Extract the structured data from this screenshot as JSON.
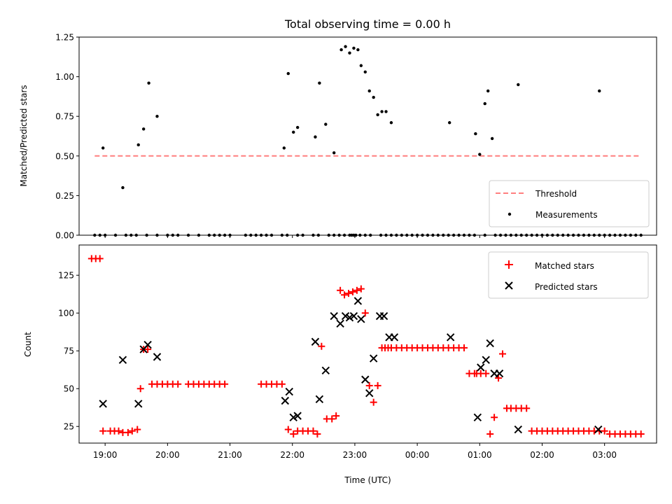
{
  "chart_data": [
    {
      "type": "scatter",
      "title": "Total observing time = 0.00 h",
      "xlabel": "",
      "ylabel": "Matched/Predicted stars",
      "xlim": [
        "18:35",
        "03:50"
      ],
      "ylim": [
        0.0,
        1.25
      ],
      "yticks": [
        "0.00",
        "0.25",
        "0.50",
        "0.75",
        "1.00",
        "1.25"
      ],
      "legend_position": "lower right",
      "series": [
        {
          "name": "Threshold",
          "kind": "dashed-line",
          "color": "#ff7f7f",
          "x": [
            "18:50",
            "03:35"
          ],
          "y": [
            0.5,
            0.5
          ]
        },
        {
          "name": "Measurements",
          "kind": "dots",
          "color": "#000000",
          "x": [
            "18:50",
            "18:55",
            "19:00",
            "19:10",
            "19:20",
            "19:25",
            "19:30",
            "19:40",
            "19:50",
            "20:00",
            "20:05",
            "20:10",
            "20:20",
            "20:30",
            "20:40",
            "20:45",
            "20:50",
            "20:55",
            "21:00",
            "21:15",
            "21:20",
            "21:25",
            "21:30",
            "21:35",
            "21:40",
            "21:50",
            "21:55",
            "22:05",
            "22:10",
            "22:20",
            "22:25",
            "22:35",
            "22:40",
            "22:45",
            "22:50",
            "22:55",
            "22:57",
            "22:59",
            "23:01",
            "23:05",
            "23:10",
            "23:15",
            "23:25",
            "23:30",
            "23:35",
            "23:40",
            "23:45",
            "23:50",
            "23:55",
            "00:00",
            "00:05",
            "00:10",
            "00:15",
            "00:20",
            "00:25",
            "00:30",
            "00:35",
            "00:40",
            "00:45",
            "00:50",
            "00:55",
            "01:05",
            "01:15",
            "01:20",
            "01:25",
            "01:30",
            "01:35",
            "01:40",
            "01:45",
            "01:50",
            "01:55",
            "02:00",
            "02:05",
            "02:10",
            "02:15",
            "02:20",
            "02:25",
            "02:30",
            "02:35",
            "02:40",
            "02:45",
            "02:50",
            "02:55",
            "03:00",
            "03:05",
            "03:10",
            "03:15",
            "03:20",
            "03:25",
            "03:30",
            "03:35",
            "18:58",
            "19:17",
            "19:32",
            "19:37",
            "19:42",
            "19:50",
            "21:52",
            "21:56",
            "22:01",
            "22:05",
            "22:22",
            "22:26",
            "22:32",
            "22:40",
            "22:47",
            "22:51",
            "22:55",
            "22:59",
            "23:03",
            "23:06",
            "23:10",
            "23:14",
            "23:18",
            "23:22",
            "23:26",
            "23:30",
            "23:35",
            "00:31",
            "00:56",
            "01:00",
            "01:05",
            "01:08",
            "01:12",
            "01:37",
            "02:55"
          ],
          "y": [
            0,
            0,
            0,
            0,
            0,
            0,
            0,
            0,
            0,
            0,
            0,
            0,
            0,
            0,
            0,
            0,
            0,
            0,
            0,
            0,
            0,
            0,
            0,
            0,
            0,
            0,
            0,
            0,
            0,
            0,
            0,
            0,
            0,
            0,
            0,
            0,
            0,
            0,
            0,
            0,
            0,
            0,
            0,
            0,
            0,
            0,
            0,
            0,
            0,
            0,
            0,
            0,
            0,
            0,
            0,
            0,
            0,
            0,
            0,
            0,
            0,
            0,
            0,
            0,
            0,
            0,
            0,
            0,
            0,
            0,
            0,
            0,
            0,
            0,
            0,
            0,
            0,
            0,
            0,
            0,
            0,
            0,
            0,
            0,
            0,
            0,
            0,
            0,
            0,
            0,
            0,
            0.55,
            0.3,
            0.57,
            0.67,
            0.96,
            0.75,
            0.55,
            1.02,
            0.65,
            0.68,
            0.62,
            0.96,
            0.7,
            0.52,
            1.17,
            1.19,
            1.15,
            1.18,
            1.17,
            1.07,
            1.03,
            0.91,
            0.87,
            0.76,
            0.78,
            0.78,
            0.71,
            0.71,
            0.64,
            0.51,
            0.83,
            0.91,
            0.61,
            0.95,
            0.91
          ]
        }
      ]
    },
    {
      "type": "scatter",
      "title": "",
      "xlabel": "Time (UTC)",
      "ylabel": "Count",
      "xlim": [
        "18:35",
        "03:50"
      ],
      "ylim": [
        14,
        145
      ],
      "xticks": [
        "19:00",
        "20:00",
        "21:00",
        "22:00",
        "23:00",
        "00:00",
        "01:00",
        "02:00",
        "03:00"
      ],
      "yticks": [
        "25",
        "50",
        "75",
        "100",
        "125"
      ],
      "legend_position": "upper right",
      "series": [
        {
          "name": "Matched stars",
          "marker": "plus",
          "color": "#ff0000",
          "x": [
            "18:47",
            "18:51",
            "18:55",
            "18:58",
            "19:05",
            "19:09",
            "19:13",
            "19:17",
            "19:22",
            "19:26",
            "19:31",
            "19:34",
            "19:37",
            "19:41",
            "19:45",
            "19:50",
            "19:55",
            "20:00",
            "20:05",
            "20:10",
            "20:20",
            "20:25",
            "20:30",
            "20:35",
            "20:40",
            "20:45",
            "20:50",
            "20:55",
            "21:30",
            "21:35",
            "21:40",
            "21:45",
            "21:50",
            "21:56",
            "22:01",
            "22:05",
            "22:10",
            "22:15",
            "22:20",
            "22:24",
            "22:28",
            "22:33",
            "22:38",
            "22:42",
            "22:46",
            "22:50",
            "22:54",
            "22:58",
            "23:02",
            "23:06",
            "23:10",
            "23:14",
            "23:18",
            "23:22",
            "23:26",
            "23:29",
            "23:32",
            "23:35",
            "23:40",
            "23:45",
            "23:50",
            "23:55",
            "00:00",
            "00:05",
            "00:10",
            "00:15",
            "00:20",
            "00:25",
            "00:30",
            "00:35",
            "00:40",
            "00:45",
            "00:50",
            "00:55",
            "00:57",
            "01:01",
            "01:06",
            "01:10",
            "01:14",
            "01:18",
            "01:22",
            "01:26",
            "01:30",
            "01:35",
            "01:40",
            "01:45",
            "01:50",
            "01:55",
            "02:00",
            "02:05",
            "02:10",
            "02:15",
            "02:20",
            "02:25",
            "02:30",
            "02:35",
            "02:40",
            "02:45",
            "02:50",
            "02:55",
            "03:00",
            "03:05",
            "03:10",
            "03:15",
            "03:20",
            "03:25",
            "03:30",
            "03:35"
          ],
          "y": [
            136,
            136,
            136,
            22,
            22,
            22,
            22,
            21,
            21,
            22,
            23,
            50,
            76,
            76,
            53,
            53,
            53,
            53,
            53,
            53,
            53,
            53,
            53,
            53,
            53,
            53,
            53,
            53,
            53,
            53,
            53,
            53,
            53,
            23,
            20,
            22,
            22,
            22,
            22,
            20,
            78,
            30,
            30,
            32,
            115,
            112,
            113,
            114,
            115,
            116,
            100,
            52,
            41,
            52,
            77,
            77,
            77,
            77,
            77,
            77,
            77,
            77,
            77,
            77,
            77,
            77,
            77,
            77,
            77,
            77,
            77,
            77,
            60,
            60,
            60,
            60,
            60,
            20,
            31,
            57,
            73,
            37,
            37,
            37,
            37,
            37,
            22,
            22,
            22,
            22,
            22,
            22,
            22,
            22,
            22,
            22,
            22,
            22,
            22,
            22,
            22,
            20,
            20,
            20,
            20,
            20,
            20,
            20
          ]
        },
        {
          "name": "Predicted stars",
          "marker": "x",
          "color": "#000000",
          "x": [
            "18:58",
            "19:17",
            "19:32",
            "19:37",
            "19:41",
            "19:50",
            "21:53",
            "21:57",
            "22:01",
            "22:05",
            "22:22",
            "22:26",
            "22:32",
            "22:40",
            "22:46",
            "22:51",
            "22:55",
            "22:59",
            "23:03",
            "23:06",
            "23:10",
            "23:14",
            "23:18",
            "23:24",
            "23:28",
            "23:33",
            "23:38",
            "00:32",
            "00:58",
            "01:01",
            "01:06",
            "01:10",
            "01:14",
            "01:19",
            "01:37",
            "02:54"
          ],
          "y": [
            40,
            69,
            40,
            76,
            79,
            71,
            42,
            48,
            31,
            32,
            81,
            43,
            62,
            98,
            93,
            98,
            97,
            98,
            108,
            96,
            56,
            47,
            70,
            98,
            98,
            84,
            84,
            84,
            31,
            64,
            69,
            80,
            60,
            60,
            23,
            23
          ]
        }
      ]
    }
  ]
}
